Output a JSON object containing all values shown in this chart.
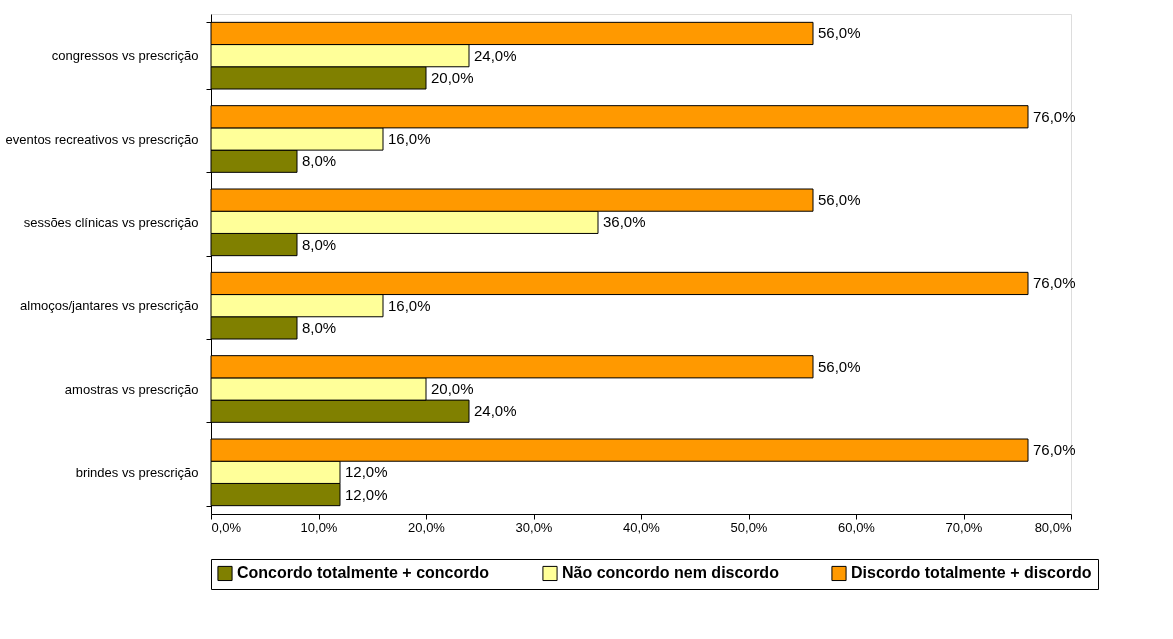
{
  "chart_data": {
    "type": "bar",
    "orientation": "horizontal",
    "categories": [
      "congressos vs prescrição",
      "eventos recreativos vs prescrição",
      "sessões clínicas vs prescrição",
      "almoços/jantares vs prescrição",
      "amostras vs prescrição",
      "brindes vs prescrição"
    ],
    "series": [
      {
        "name": "Concordo totalmente + concordo",
        "color": "#808000",
        "values": [
          20.0,
          8.0,
          8.0,
          8.0,
          24.0,
          12.0
        ],
        "value_labels": [
          "20,0%",
          "8,0%",
          "8,0%",
          "8,0%",
          "24,0%",
          "12,0%"
        ]
      },
      {
        "name": "Não concordo nem discordo",
        "color": "#ffff99",
        "values": [
          24.0,
          16.0,
          36.0,
          16.0,
          20.0,
          12.0
        ],
        "value_labels": [
          "24,0%",
          "16,0%",
          "36,0%",
          "16,0%",
          "20,0%",
          "12,0%"
        ]
      },
      {
        "name": "Discordo totalmente + discordo",
        "color": "#ff9900",
        "values": [
          56.0,
          76.0,
          56.0,
          76.0,
          56.0,
          76.0
        ],
        "value_labels": [
          "56,0%",
          "76,0%",
          "56,0%",
          "76,0%",
          "56,0%",
          "76,0%"
        ]
      }
    ],
    "xlim": [
      0,
      80
    ],
    "xticks": [
      {
        "value": 0,
        "label": "0,0%"
      },
      {
        "value": 10,
        "label": "10,0%"
      },
      {
        "value": 20,
        "label": "20,0%"
      },
      {
        "value": 30,
        "label": "30,0%"
      },
      {
        "value": 40,
        "label": "40,0%"
      },
      {
        "value": 50,
        "label": "50,0%"
      },
      {
        "value": 60,
        "label": "60,0%"
      },
      {
        "value": 70,
        "label": "70,0%"
      },
      {
        "value": 80,
        "label": "80,0%"
      }
    ],
    "grid": false,
    "legend": "bottom"
  }
}
